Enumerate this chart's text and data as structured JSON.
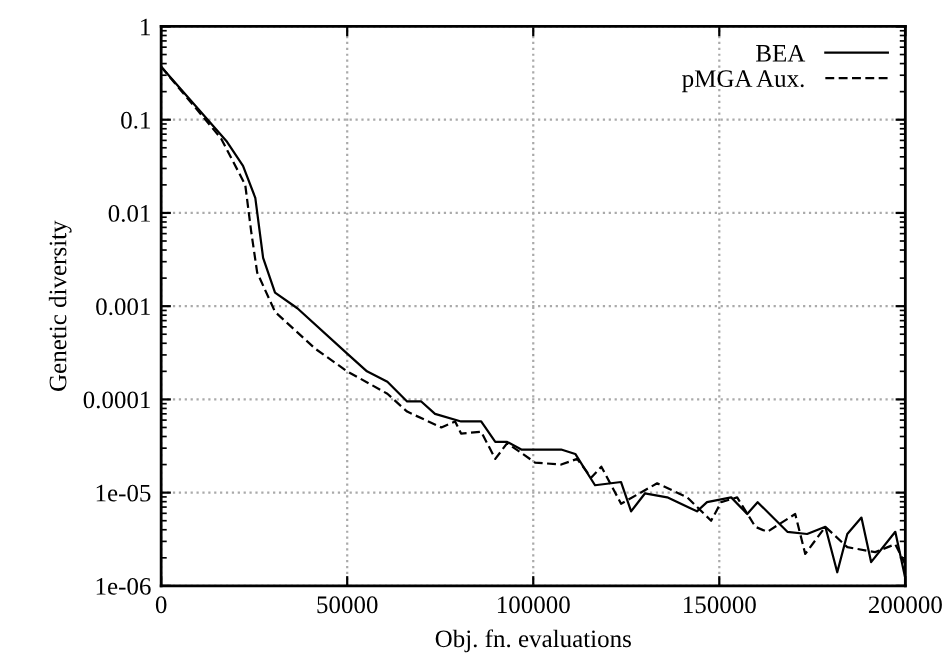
{
  "chart_data": {
    "type": "line",
    "xlabel": "Obj. fn. evaluations",
    "ylabel": "Genetic diversity",
    "log": "y",
    "grid": true,
    "legend": "top right",
    "xlim": [
      0,
      200000
    ],
    "ylim": [
      1e-06,
      1
    ],
    "xticks": [
      0,
      50000,
      100000,
      150000,
      200000
    ],
    "yticks": [
      1,
      0.1,
      0.01,
      0.001,
      0.0001,
      {
        "value": 1e-05,
        "label": "1e-05"
      },
      {
        "value": 1e-06,
        "label": "1e-06"
      }
    ],
    "series": [
      {
        "name": "BEA",
        "color": "#000000",
        "line_style": "solid",
        "x": [
          0,
          17700,
          22000,
          25300,
          27400,
          30600,
          36600,
          50000,
          55300,
          60800,
          66100,
          69900,
          73600,
          80600,
          86000,
          89800,
          93000,
          96800,
          102000,
          107500,
          111300,
          116600,
          123600,
          126300,
          130000,
          136000,
          144000,
          146700,
          153200,
          157500,
          160300,
          168300,
          173600,
          178500,
          181700,
          184400,
          188200,
          190800,
          197300,
          200000
        ],
        "values": [
          0.37,
          0.058,
          0.032,
          0.0145,
          0.0033,
          0.0014,
          0.00095,
          0.00031,
          0.0002,
          0.000155,
          9.5e-05,
          9.5e-05,
          7e-05,
          5.8e-05,
          5.8e-05,
          3.5e-05,
          3.5e-05,
          2.9e-05,
          2.9e-05,
          2.9e-05,
          2.6e-05,
          1.2e-05,
          1.3e-05,
          6.3e-06,
          9.8e-06,
          8.9e-06,
          6.3e-06,
          7.9e-06,
          8.9e-06,
          5.9e-06,
          7.9e-06,
          3.8e-06,
          3.6e-06,
          4.3e-06,
          1.4e-06,
          3.6e-06,
          5.4e-06,
          1.8e-06,
          3.8e-06,
          1.2e-06
        ]
      },
      {
        "name": "pMGA Aux.",
        "color": "#000000",
        "line_style": "dashed",
        "x": [
          0,
          16100,
          22600,
          24200,
          25800,
          30600,
          41400,
          50000,
          60800,
          66100,
          75300,
          79000,
          80600,
          86000,
          89800,
          93000,
          100500,
          107500,
          111800,
          115600,
          118300,
          123600,
          133300,
          141400,
          147800,
          150500,
          154800,
          159700,
          162900,
          170400,
          173100,
          178500,
          184400,
          191900,
          197300,
          200000
        ],
        "values": [
          0.37,
          0.063,
          0.02,
          0.0063,
          0.0023,
          0.00087,
          0.00035,
          0.0002,
          0.000115,
          7.4e-05,
          5e-05,
          5.8e-05,
          4.3e-05,
          4.5e-05,
          2.3e-05,
          3.4e-05,
          2.1e-05,
          2e-05,
          2.3e-05,
          1.45e-05,
          1.9e-05,
          7.6e-06,
          1.26e-05,
          8.9e-06,
          5e-06,
          7.9e-06,
          8.9e-06,
          4.3e-06,
          3.8e-06,
          5.9e-06,
          2.2e-06,
          4.3e-06,
          2.6e-06,
          2.3e-06,
          2.8e-06,
          1.7e-06
        ]
      }
    ]
  }
}
